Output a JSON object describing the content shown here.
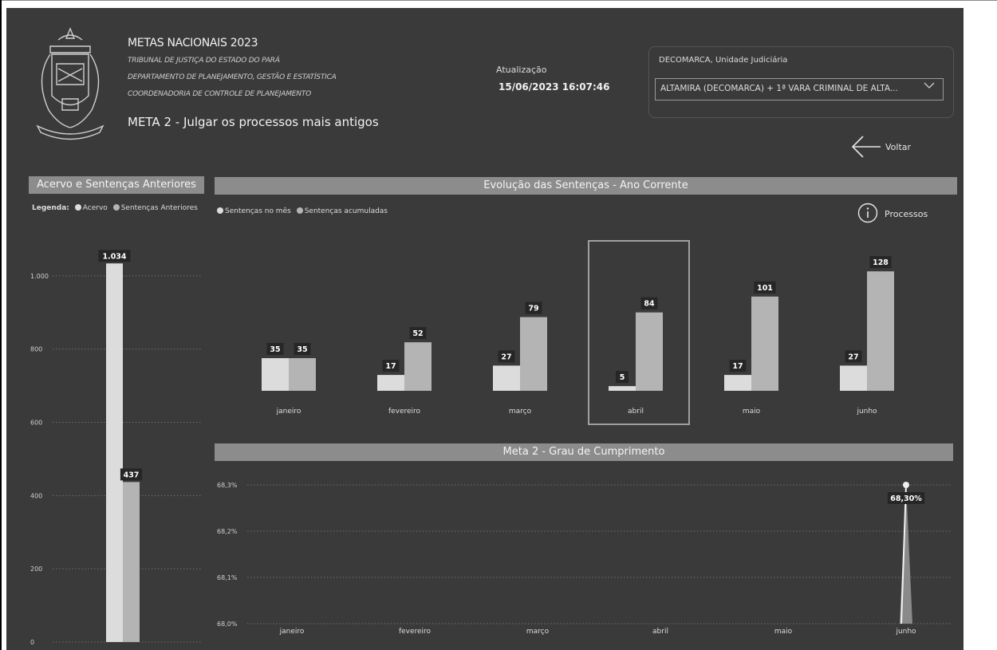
{
  "header": {
    "title": "METAS NACIONAIS 2023",
    "subtitle_lines": [
      "TRIBUNAL DE JUSTIÇA DO ESTADO DO PARÁ",
      "DEPARTAMENTO DE PLANEJAMENTO, GESTÃO E ESTATÍSTICA",
      "COORDENADORIA DE CONTROLE DE PLANEJAMENTO"
    ],
    "meta_title": "META 2 - Julgar os processos mais antigos",
    "update_label": "Atualização",
    "update_value": "15/06/2023 16:07:46"
  },
  "filter": {
    "label": "DECOMARCA, Unidade Judiciária",
    "selected": "ALTAMIRA (DECOMARCA) + 1ª VARA CRIMINAL DE ALTA..."
  },
  "nav": {
    "back_label": "Voltar",
    "processes_label": "Processos"
  },
  "icons": {
    "emblem": "coat-of-arms-emblem",
    "back": "arrow-left-icon",
    "info": "info-circle-icon",
    "chevron": "chevron-down-icon"
  },
  "colors": {
    "background": "#3a3a3a",
    "header_bar": "#8c8c8c",
    "series_light": "#dcdcdc",
    "series_mid": "#b4b4b4",
    "label_bg": "#262626"
  },
  "chart_data": [
    {
      "id": "acervo",
      "type": "bar",
      "title": "Acervo e Sentenças Anteriores",
      "legend_prefix": "Legenda:",
      "legend": [
        "Acervo",
        "Sentenças Anteriores"
      ],
      "series": [
        {
          "name": "Acervo",
          "values": [
            1034
          ],
          "labels": [
            "1.034"
          ]
        },
        {
          "name": "Sentenças Anteriores",
          "values": [
            437
          ],
          "labels": [
            "437"
          ]
        }
      ],
      "yticks": [
        0,
        200,
        400,
        600,
        800,
        1000
      ],
      "ytick_labels": [
        "0",
        "200",
        "400",
        "600",
        "800",
        "1.000"
      ],
      "ylim": [
        0,
        1100
      ],
      "grid": true
    },
    {
      "id": "evolucao",
      "type": "bar",
      "title": "Evolução das Sentenças - Ano Corrente",
      "legend": [
        "Sentenças no mês",
        "Sentenças acumuladas"
      ],
      "categories": [
        "janeiro",
        "fevereiro",
        "março",
        "abril",
        "maio",
        "junho"
      ],
      "series": [
        {
          "name": "Sentenças no mês",
          "values": [
            35,
            17,
            27,
            5,
            17,
            27
          ]
        },
        {
          "name": "Sentenças acumuladas",
          "values": [
            35,
            52,
            79,
            84,
            101,
            128
          ]
        }
      ],
      "highlighted_category": "abril"
    },
    {
      "id": "grau",
      "type": "line",
      "title": "Meta 2 - Grau de Cumprimento",
      "categories": [
        "janeiro",
        "fevereiro",
        "março",
        "abril",
        "maio",
        "junho"
      ],
      "yticks": [
        68.0,
        68.1,
        68.2,
        68.3
      ],
      "ytick_labels": [
        "68,0%",
        "68,1%",
        "68,2%",
        "68,3%"
      ],
      "ylim": [
        68.0,
        68.3
      ],
      "points": [
        {
          "x": "junho",
          "y": 68.3,
          "label": "68,30%"
        }
      ],
      "grid": true
    }
  ]
}
